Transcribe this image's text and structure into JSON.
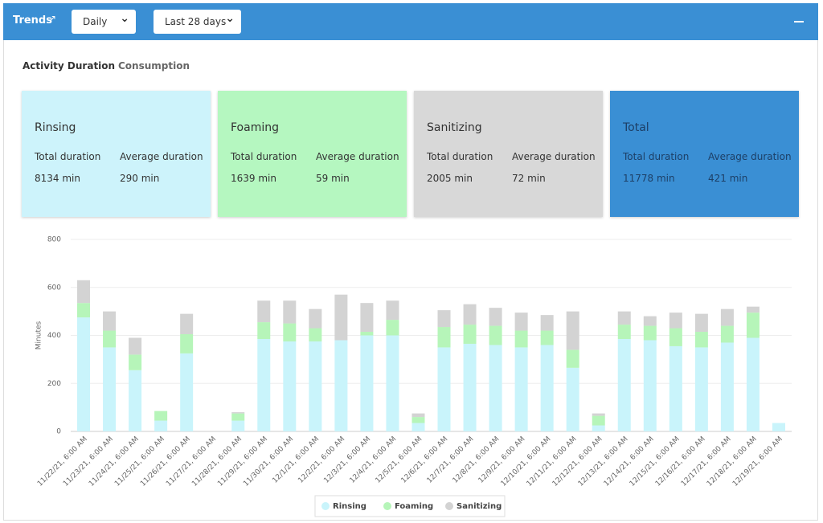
{
  "header": {
    "title": "Trends",
    "selects": [
      "Daily",
      "Last 28 days"
    ]
  },
  "tabs": [
    "Activity Duration",
    "Consumption"
  ],
  "cards": [
    {
      "title": "Rinsing",
      "labels": [
        "Total duration",
        "Average duration"
      ],
      "values": [
        "8134 min",
        "290 min"
      ]
    },
    {
      "title": "Foaming",
      "labels": [
        "Total duration",
        "Average duration"
      ],
      "values": [
        "1639 min",
        "59 min"
      ]
    },
    {
      "title": "Sanitizing",
      "labels": [
        "Total duration",
        "Average duration"
      ],
      "values": [
        "2005 min",
        "72 min"
      ]
    },
    {
      "title": "Total",
      "labels": [
        "Total duration",
        "Average duration"
      ],
      "values": [
        "11778 min",
        "421 min"
      ]
    }
  ],
  "chart_data": {
    "type": "stacked_bar",
    "y_label": "Minutes",
    "categories": [
      "11/22/21, 6:00 AM",
      "11/23/21, 6:00 AM",
      "11/24/21, 6:00 AM",
      "11/25/21, 6:00 AM",
      "11/26/21, 6:00 AM",
      "11/27/21, 6:00 AM",
      "11/28/21, 6:00 AM",
      "11/29/21, 6:00 AM",
      "11/30/21, 6:00 AM",
      "12/1/21, 6:00 AM",
      "12/2/21, 6:00 AM",
      "12/3/21, 6:00 AM",
      "12/4/21, 6:00 AM",
      "12/5/21, 6:00 AM",
      "12/6/21, 6:00 AM",
      "12/7/21, 6:00 AM",
      "12/8/21, 6:00 AM",
      "12/9/21, 6:00 AM",
      "12/10/21, 6:00 AM",
      "12/11/21, 6:00 AM",
      "12/12/21, 6:00 AM",
      "12/13/21, 6:00 AM",
      "12/14/21, 6:00 AM",
      "12/15/21, 6:00 AM",
      "12/16/21, 6:00 AM",
      "12/17/21, 6:00 AM",
      "12/18/21, 6:00 AM",
      "12/19/21, 6:00 AM"
    ],
    "series": [
      {
        "name": "Rinsing",
        "color": "#c9f4fb",
        "values": [
          475,
          350,
          255,
          45,
          325,
          0,
          45,
          385,
          375,
          375,
          380,
          400,
          400,
          35,
          350,
          365,
          360,
          350,
          360,
          265,
          25,
          385,
          380,
          355,
          350,
          370,
          390,
          35
        ]
      },
      {
        "name": "Foaming",
        "color": "#b6f5b9",
        "values": [
          60,
          70,
          65,
          40,
          80,
          0,
          30,
          70,
          75,
          55,
          0,
          15,
          65,
          25,
          85,
          80,
          80,
          70,
          60,
          75,
          40,
          60,
          60,
          75,
          65,
          70,
          105,
          0
        ]
      },
      {
        "name": "Sanitizing",
        "color": "#d3d3d3",
        "values": [
          95,
          80,
          70,
          0,
          85,
          0,
          5,
          90,
          95,
          80,
          190,
          120,
          80,
          15,
          70,
          85,
          75,
          75,
          65,
          160,
          10,
          55,
          40,
          65,
          75,
          70,
          25,
          0
        ]
      }
    ],
    "ylim": [
      0,
      800
    ],
    "yticks": [
      0,
      200,
      400,
      600,
      800
    ],
    "grid": true,
    "legend": "bottom"
  }
}
